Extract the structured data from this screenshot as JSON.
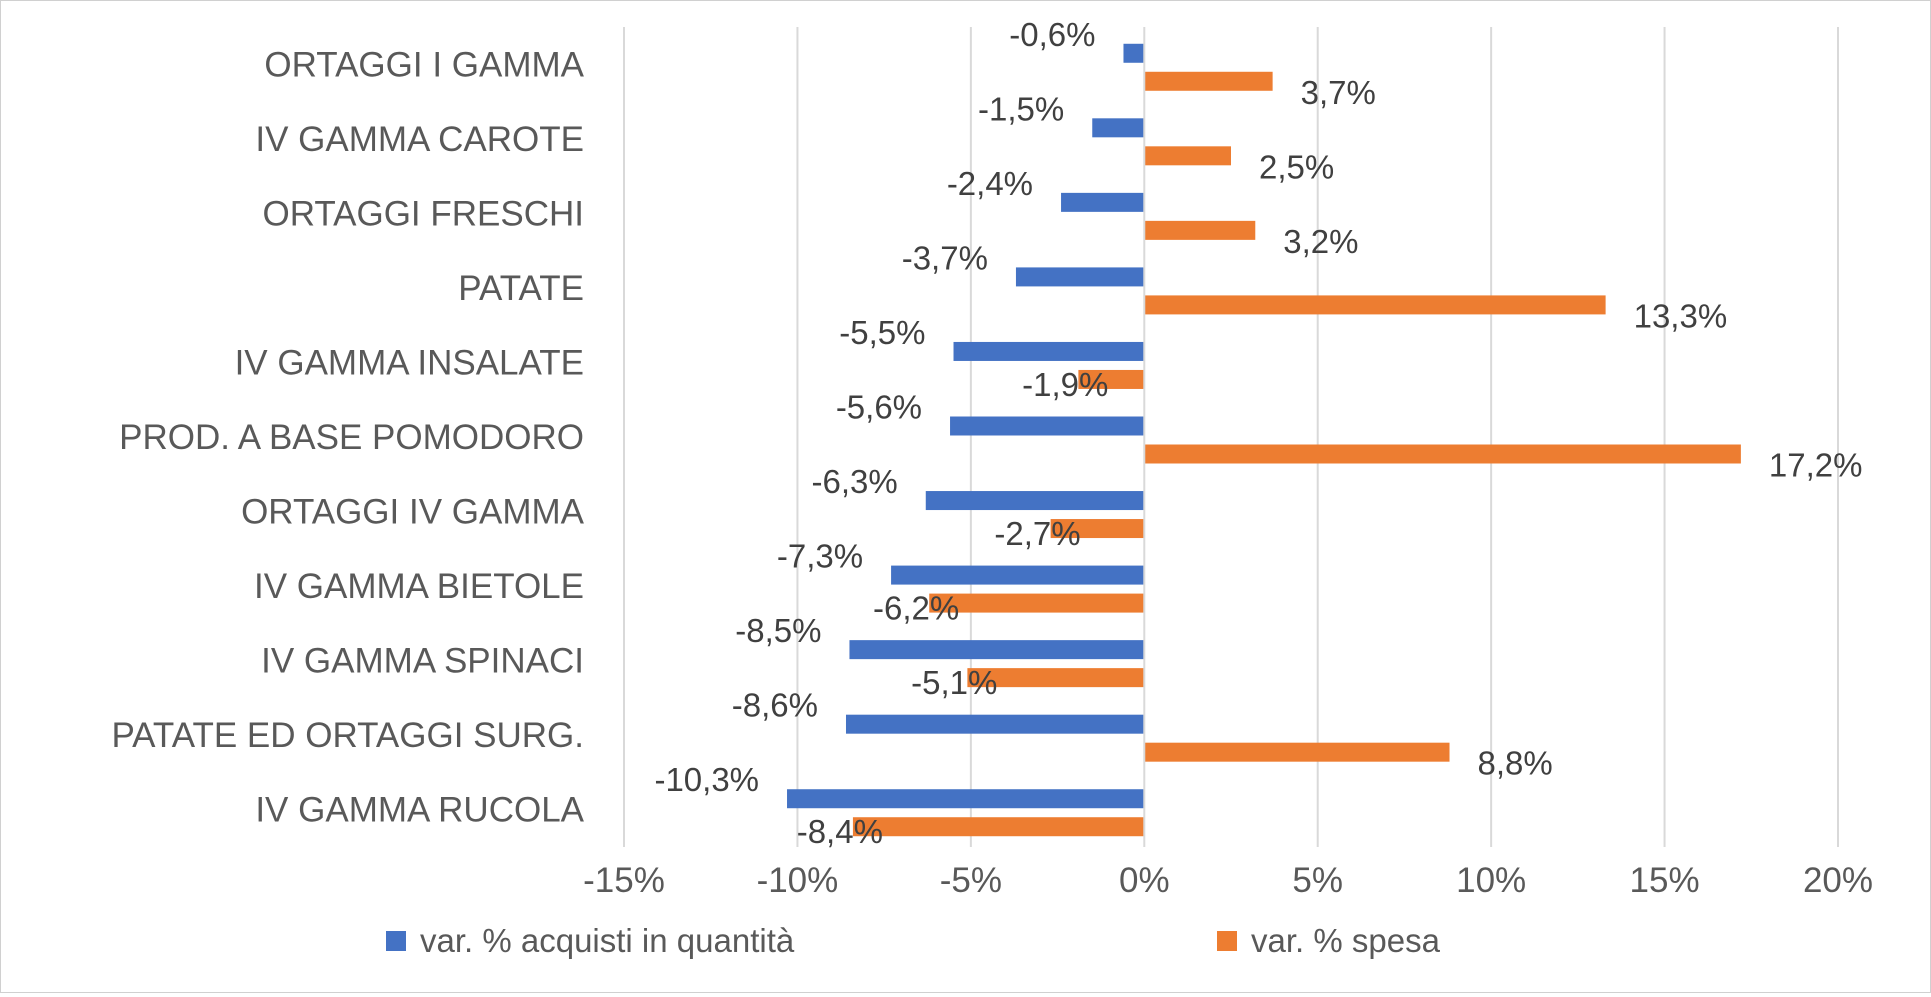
{
  "chart_data": {
    "type": "bar",
    "orientation": "horizontal",
    "categories": [
      "ORTAGGI I GAMMA",
      "IV GAMMA CAROTE",
      "ORTAGGI FRESCHI",
      "PATATE",
      "IV GAMMA INSALATE",
      "PROD. A BASE POMODORO",
      "ORTAGGI IV GAMMA",
      "IV GAMMA BIETOLE",
      "IV GAMMA SPINACI",
      "PATATE ED ORTAGGI SURG.",
      "IV GAMMA RUCOLA"
    ],
    "series": [
      {
        "name": "var. % acquisti in quantità",
        "color": "#4472C4",
        "values": [
          -0.6,
          -1.5,
          -2.4,
          -3.7,
          -5.5,
          -5.6,
          -6.3,
          -7.3,
          -8.5,
          -8.6,
          -10.3
        ],
        "labels": [
          "-0,6%",
          "-1,5%",
          "-2,4%",
          "-3,7%",
          "-5,5%",
          "-5,6%",
          "-6,3%",
          "-7,3%",
          "-8,5%",
          "-8,6%",
          "-10,3%"
        ]
      },
      {
        "name": "var. % spesa",
        "color": "#ED7D31",
        "values": [
          3.7,
          2.5,
          3.2,
          13.3,
          -1.9,
          17.2,
          -2.7,
          -6.2,
          -5.1,
          8.8,
          -8.4
        ],
        "labels": [
          "3,7%",
          "2,5%",
          "3,2%",
          "13,3%",
          "-1,9%",
          "17,2%",
          "-2,7%",
          "-6,2%",
          "-5,1%",
          "8,8%",
          "-8,4%"
        ]
      }
    ],
    "xlim": [
      -15,
      20
    ],
    "xticks": [
      -15,
      -10,
      -5,
      0,
      5,
      10,
      15,
      20
    ],
    "xtick_labels": [
      "-15%",
      "-10%",
      "-5%",
      "0%",
      "5%",
      "10%",
      "15%",
      "20%"
    ],
    "grid": true,
    "legend_position": "bottom",
    "title": "",
    "xlabel": "",
    "ylabel": ""
  }
}
